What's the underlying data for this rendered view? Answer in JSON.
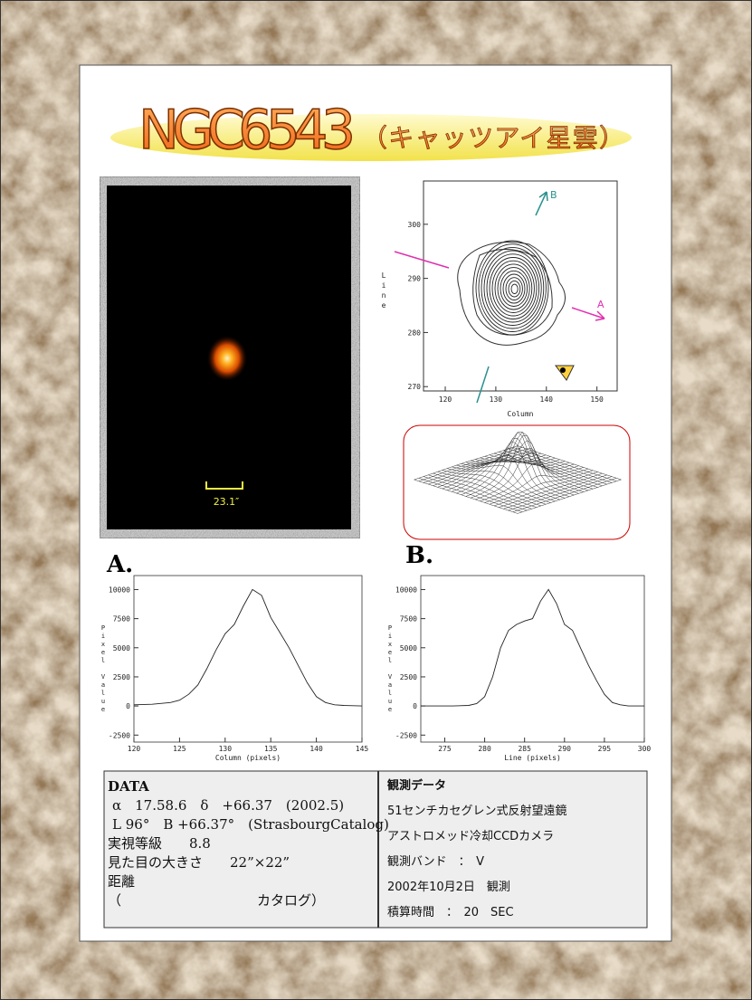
{
  "title": "NGC6543",
  "subtitle": "（キャッツアイ星雲）",
  "image": {
    "scale_label": "23.1″"
  },
  "panel_labels": [
    "A.",
    "B."
  ],
  "contour": {
    "xlabel": "Column",
    "ylabel": "Line",
    "xlim": [
      115.7,
      154
    ],
    "ylim": [
      269.2,
      308
    ],
    "xticks": [
      120,
      130,
      140,
      150
    ],
    "yticks": [
      270,
      280,
      290,
      300
    ],
    "markers": [
      "A",
      "B"
    ]
  },
  "chart_data": [
    {
      "type": "line",
      "xlabel": "Column (pixels)",
      "ylabel": "Pixel Value",
      "x": [
        120,
        122,
        124,
        125,
        126,
        127,
        128,
        129,
        130,
        131,
        132,
        133,
        134,
        135,
        136,
        137,
        138,
        139,
        140,
        141,
        142,
        143,
        145
      ],
      "values": [
        100,
        150,
        300,
        500,
        1000,
        1800,
        3200,
        4800,
        6200,
        7000,
        8600,
        10000,
        9500,
        7600,
        6300,
        5000,
        3500,
        2000,
        800,
        300,
        100,
        50,
        0
      ],
      "xlim": [
        120,
        145
      ],
      "ylim": [
        -3100,
        11200
      ],
      "xticks": [
        120,
        125,
        130,
        135,
        140,
        145
      ],
      "yticks": [
        -2500,
        0,
        2500,
        5000,
        7500,
        10000
      ],
      "color": "#222222"
    },
    {
      "type": "line",
      "xlabel": "Line (pixels)",
      "ylabel": "Pixel Value",
      "x": [
        272,
        276,
        278,
        279,
        280,
        281,
        282,
        283,
        284,
        285,
        286,
        287,
        288,
        289,
        290,
        291,
        292,
        293,
        294,
        295,
        296,
        297,
        298,
        300
      ],
      "values": [
        0,
        0,
        50,
        200,
        800,
        2500,
        5000,
        6500,
        7000,
        7300,
        7500,
        9000,
        10000,
        8800,
        7000,
        6500,
        5000,
        3500,
        2200,
        1000,
        300,
        100,
        0,
        0
      ],
      "xlim": [
        272,
        300
      ],
      "ylim": [
        -3100,
        11200
      ],
      "xticks": [
        275,
        280,
        285,
        290,
        295,
        300
      ],
      "yticks": [
        -2500,
        0,
        2500,
        5000,
        7500,
        10000
      ],
      "color": "#222222"
    }
  ],
  "data_box": {
    "left": [
      "DATA",
      "α　17.58.6　δ　+66.37　(2002.5)",
      "L 96°　B +66.37°　(StrasbourgCatalog)",
      "実視等級　　8.8",
      "見た目の大きさ　　22”×22”",
      "距離",
      "（　　　　　　　　　　カタログ）"
    ],
    "right": [
      "観測データ",
      "51センチカセグレン式反射望遠鏡",
      "アストロメッド冷却CCDカメラ",
      "観測バンド　：　V",
      "2002年10月2日　観測",
      "積算時間　：　20　SEC"
    ]
  }
}
